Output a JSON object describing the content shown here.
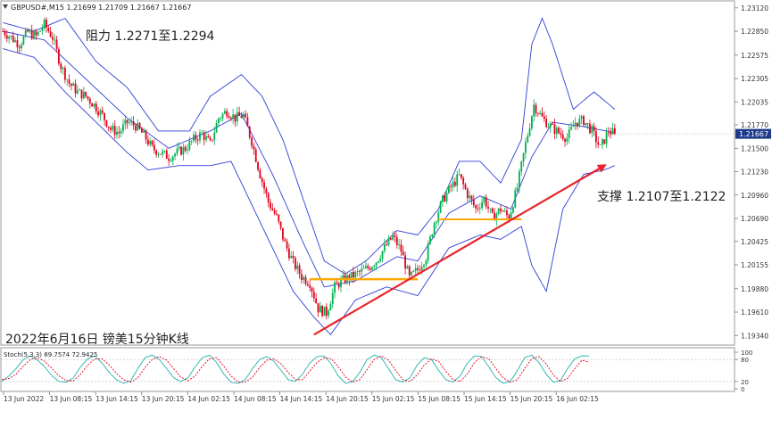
{
  "window": {
    "header": "GBPUSD#,M15  1.21699 1.21709 1.21667 1.21667"
  },
  "annotations": {
    "resistance": "阻力 1.2271至1.2294",
    "support": "支撑 1.2107至1.2122",
    "caption": "2022年6月16日 镑美15分钟K线"
  },
  "colors": {
    "bull_candle": "#00b050",
    "bear_candle": "#e0001b",
    "bands": "#2f3fd8",
    "support_line": "#ffa800",
    "trend_arrow": "#e8232a",
    "price_tag": "#1e3a8a",
    "stoch_main": "#20b2aa",
    "stoch_signal": "#e0001b"
  },
  "chart_data": [
    {
      "type": "candlestick",
      "symbol": "GBPUSD#",
      "timeframe": "M15",
      "ohlc": {
        "open": 1.21699,
        "high": 1.21709,
        "low": 1.21667,
        "close": 1.21667
      },
      "current_price_label": "1.21667",
      "current_price": 1.21667,
      "ylim": [
        1.1925,
        1.2318
      ],
      "y_ticks": [
        1.2312,
        1.2285,
        1.22575,
        1.22305,
        1.22035,
        1.2177,
        1.215,
        1.2123,
        1.2096,
        1.2069,
        1.20425,
        1.20155,
        1.1988,
        1.1961,
        1.1934
      ],
      "y_tick_labels": [
        "1.23120",
        "1.22850",
        "1.22575",
        "1.22305",
        "1.22035",
        "1.21770",
        "1.21500",
        "1.21230",
        "1.20960",
        "1.20690",
        "1.20425",
        "1.20155",
        "1.19880",
        "1.19610",
        "1.19340"
      ],
      "x_tick_labels": [
        "13 Jun 2022",
        "13 Jun 08:15",
        "13 Jun 14:15",
        "13 Jun 20:15",
        "14 Jun 02:15",
        "14 Jun 08:15",
        "14 Jun 14:15",
        "14 Jun 20:15",
        "15 Jun 02:15",
        "15 Jun 08:15",
        "15 Jun 14:15",
        "15 Jun 20:15",
        "16 Jun 02:15"
      ],
      "close_path": [
        [
          0,
          1.2285
        ],
        [
          4,
          1.2278
        ],
        [
          8,
          1.227
        ],
        [
          12,
          1.2284
        ],
        [
          16,
          1.2279
        ],
        [
          20,
          1.2293
        ],
        [
          24,
          1.2278
        ],
        [
          28,
          1.2245
        ],
        [
          32,
          1.2225
        ],
        [
          36,
          1.2215
        ],
        [
          40,
          1.221
        ],
        [
          44,
          1.22
        ],
        [
          48,
          1.2188
        ],
        [
          52,
          1.2172
        ],
        [
          56,
          1.2168
        ],
        [
          60,
          1.218
        ],
        [
          64,
          1.2176
        ],
        [
          68,
          1.2165
        ],
        [
          72,
          1.215
        ],
        [
          76,
          1.2145
        ],
        [
          80,
          1.214
        ],
        [
          84,
          1.2145
        ],
        [
          88,
          1.215
        ],
        [
          92,
          1.216
        ],
        [
          96,
          1.2167
        ],
        [
          100,
          1.2155
        ],
        [
          104,
          1.2185
        ],
        [
          108,
          1.2193
        ],
        [
          112,
          1.2185
        ],
        [
          116,
          1.2188
        ],
        [
          120,
          1.2158
        ],
        [
          124,
          1.212
        ],
        [
          128,
          1.2088
        ],
        [
          132,
          1.207
        ],
        [
          136,
          1.204
        ],
        [
          140,
          1.2018
        ],
        [
          144,
          1.2002
        ],
        [
          148,
          1.1995
        ],
        [
          152,
          1.1965
        ],
        [
          156,
          1.196
        ],
        [
          160,
          1.199
        ],
        [
          164,
          1.1998
        ],
        [
          168,
          1.2002
        ],
        [
          172,
          1.2007
        ],
        [
          176,
          1.2012
        ],
        [
          180,
          1.202
        ],
        [
          184,
          1.2035
        ],
        [
          188,
          1.2048
        ],
        [
          192,
          1.2032
        ],
        [
          196,
          1.2
        ],
        [
          200,
          1.201
        ],
        [
          204,
          1.2025
        ],
        [
          208,
          1.2065
        ],
        [
          212,
          1.209
        ],
        [
          216,
          1.2105
        ],
        [
          220,
          1.2118
        ],
        [
          224,
          1.2097
        ],
        [
          228,
          1.208
        ],
        [
          232,
          1.2092
        ],
        [
          236,
          1.207
        ],
        [
          240,
          1.208
        ],
        [
          244,
          1.207
        ],
        [
          248,
          1.2105
        ],
        [
          252,
          1.2155
        ],
        [
          256,
          1.22
        ],
        [
          260,
          1.2185
        ],
        [
          264,
          1.2175
        ],
        [
          268,
          1.2168
        ],
        [
          272,
          1.2162
        ],
        [
          276,
          1.218
        ],
        [
          280,
          1.2182
        ],
        [
          284,
          1.217
        ],
        [
          288,
          1.215
        ],
        [
          292,
          1.217
        ],
        [
          295,
          1.2167
        ]
      ],
      "bollinger_upper": [
        [
          0,
          1.2295
        ],
        [
          15,
          1.2285
        ],
        [
          30,
          1.23
        ],
        [
          45,
          1.225
        ],
        [
          60,
          1.222
        ],
        [
          75,
          1.217
        ],
        [
          90,
          1.217
        ],
        [
          100,
          1.221
        ],
        [
          115,
          1.2235
        ],
        [
          125,
          1.221
        ],
        [
          135,
          1.216
        ],
        [
          145,
          1.209
        ],
        [
          155,
          1.202
        ],
        [
          165,
          1.2005
        ],
        [
          175,
          1.202
        ],
        [
          190,
          1.2055
        ],
        [
          200,
          1.205
        ],
        [
          210,
          1.208
        ],
        [
          220,
          1.2135
        ],
        [
          230,
          1.2135
        ],
        [
          240,
          1.211
        ],
        [
          250,
          1.216
        ],
        [
          255,
          1.227
        ],
        [
          260,
          1.23
        ],
        [
          265,
          1.227
        ],
        [
          275,
          1.2195
        ],
        [
          285,
          1.2215
        ],
        [
          295,
          1.2195
        ]
      ],
      "bollinger_middle": [
        [
          0,
          1.2285
        ],
        [
          20,
          1.2275
        ],
        [
          40,
          1.223
        ],
        [
          60,
          1.2185
        ],
        [
          80,
          1.215
        ],
        [
          100,
          1.217
        ],
        [
          115,
          1.219
        ],
        [
          130,
          1.212
        ],
        [
          145,
          1.204
        ],
        [
          155,
          1.199
        ],
        [
          170,
          1.1997
        ],
        [
          190,
          1.2025
        ],
        [
          200,
          1.202
        ],
        [
          215,
          1.2075
        ],
        [
          230,
          1.2095
        ],
        [
          245,
          1.208
        ],
        [
          255,
          1.214
        ],
        [
          265,
          1.218
        ],
        [
          280,
          1.2175
        ],
        [
          295,
          1.2168
        ]
      ],
      "bollinger_lower": [
        [
          0,
          1.2265
        ],
        [
          15,
          1.2255
        ],
        [
          30,
          1.2215
        ],
        [
          45,
          1.218
        ],
        [
          60,
          1.2145
        ],
        [
          70,
          1.2125
        ],
        [
          85,
          1.213
        ],
        [
          100,
          1.213
        ],
        [
          110,
          1.2135
        ],
        [
          125,
          1.206
        ],
        [
          140,
          1.1985
        ],
        [
          150,
          1.1955
        ],
        [
          158,
          1.1935
        ],
        [
          170,
          1.1975
        ],
        [
          185,
          1.199
        ],
        [
          200,
          1.198
        ],
        [
          215,
          1.2035
        ],
        [
          230,
          1.205
        ],
        [
          240,
          1.2045
        ],
        [
          250,
          1.206
        ],
        [
          255,
          1.2015
        ],
        [
          262,
          1.1985
        ],
        [
          270,
          1.208
        ],
        [
          280,
          1.212
        ],
        [
          290,
          1.2125
        ],
        [
          295,
          1.213
        ]
      ],
      "support_levels": [
        1.1999,
        1.2068
      ],
      "trend_line": [
        [
          150,
          1.1935
        ],
        [
          290,
          1.213
        ]
      ]
    },
    {
      "type": "line",
      "indicator": "Stochastic",
      "label": "Stoch(5,3,3) 89.7574 72.9425",
      "last_values": {
        "main": 89.7574,
        "signal": 72.9425
      },
      "ylim": [
        0,
        100
      ],
      "y_tick_labels": [
        "100",
        "80",
        "20",
        "0"
      ],
      "levels": [
        20,
        80
      ],
      "main_values": [
        20,
        35,
        55,
        80,
        90,
        78,
        60,
        35,
        20,
        18,
        30,
        60,
        82,
        90,
        70,
        45,
        25,
        15,
        22,
        55,
        85,
        92,
        80,
        55,
        30,
        20,
        30,
        60,
        85,
        92,
        72,
        40,
        18,
        15,
        25,
        55,
        80,
        88,
        75,
        50,
        25,
        20,
        40,
        70,
        88,
        90,
        68,
        35,
        15,
        20,
        45,
        80,
        92,
        85,
        55,
        25,
        18,
        30,
        65,
        85,
        80,
        50,
        25,
        18,
        35,
        70,
        90,
        88,
        60,
        30,
        15,
        20,
        50,
        85,
        92,
        72,
        40,
        18,
        22,
        55,
        82,
        90,
        89.7574
      ],
      "signal_values": [
        25,
        28,
        40,
        62,
        80,
        85,
        75,
        55,
        35,
        22,
        22,
        40,
        65,
        82,
        82,
        65,
        42,
        25,
        18,
        30,
        58,
        80,
        88,
        78,
        55,
        32,
        22,
        35,
        62,
        82,
        85,
        62,
        35,
        18,
        18,
        32,
        58,
        78,
        82,
        68,
        45,
        25,
        25,
        48,
        72,
        85,
        82,
        60,
        32,
        18,
        25,
        52,
        80,
        90,
        78,
        50,
        25,
        20,
        38,
        65,
        82,
        75,
        48,
        25,
        20,
        40,
        72,
        88,
        82,
        55,
        30,
        18,
        25,
        55,
        82,
        88,
        68,
        38,
        20,
        28,
        55,
        78,
        72.9425
      ]
    }
  ]
}
